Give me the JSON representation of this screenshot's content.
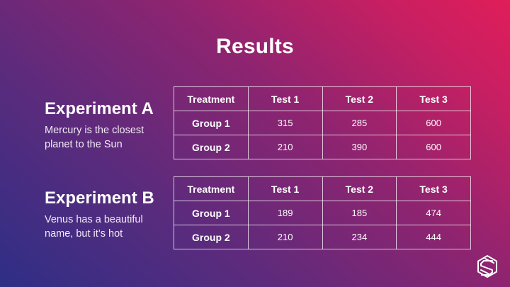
{
  "slide": {
    "title": "Results"
  },
  "experiments": [
    {
      "heading": "Experiment A",
      "description": "Mercury is the closest planet to the Sun",
      "table": {
        "headers": [
          "Treatment",
          "Test 1",
          "Test 2",
          "Test 3"
        ],
        "rows": [
          [
            "Group 1",
            "315",
            "285",
            "600"
          ],
          [
            "Group 2",
            "210",
            "390",
            "600"
          ]
        ]
      }
    },
    {
      "heading": "Experiment B",
      "description": "Venus has a beautiful name, but it’s hot",
      "table": {
        "headers": [
          "Treatment",
          "Test 1",
          "Test 2",
          "Test 3"
        ],
        "rows": [
          [
            "Group 1",
            "189",
            "185",
            "474"
          ],
          [
            "Group 2",
            "210",
            "234",
            "444"
          ]
        ]
      }
    }
  ],
  "colors": {
    "gradient_start": "#2e2f86",
    "gradient_end": "#e01e5a",
    "text": "#ffffff"
  },
  "icons": {
    "logo": "slidesgo-s-logo-icon"
  }
}
